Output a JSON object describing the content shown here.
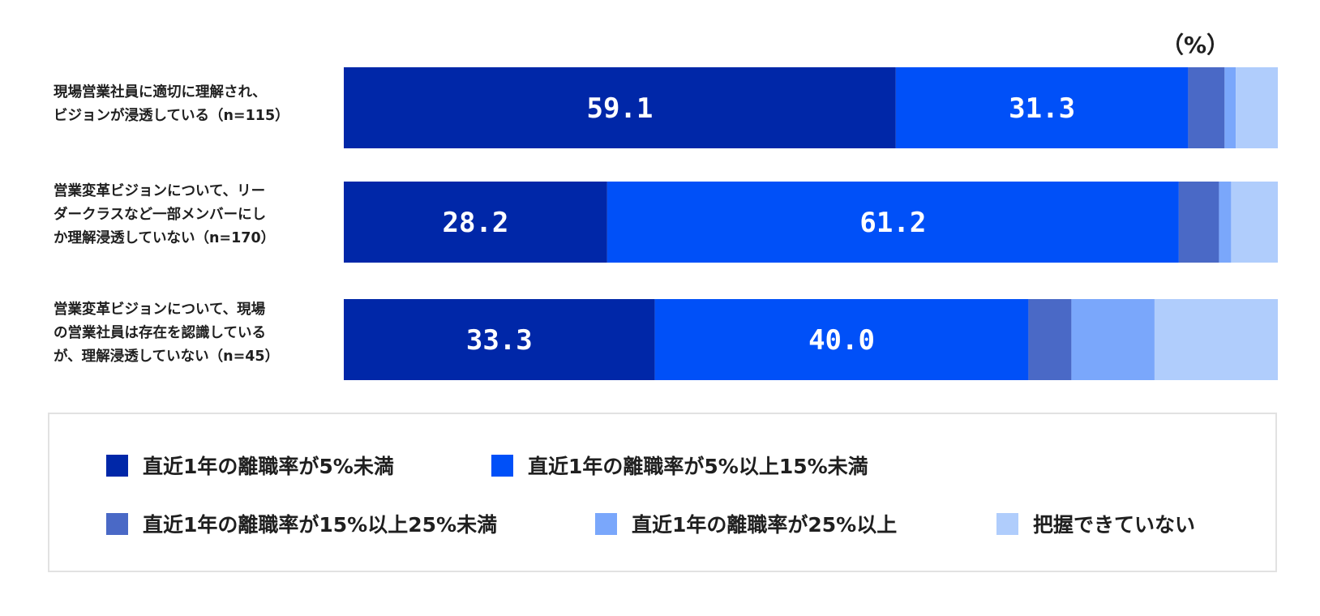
{
  "chart_data": {
    "type": "bar",
    "orientation": "horizontal",
    "stacked": true,
    "unit_label": "（%）",
    "xlim": [
      0,
      100
    ],
    "categories": [
      "現場営業社員に適切に理解され、\nビジョンが浸透している（n=115）",
      "営業変革ビジョンについて、リー\nダークラスなど一部メンバーにし\nか理解浸透していない（n=170）",
      "営業変革ビジョンについて、現場\nの営業社員は存在を認識している\nが、理解浸透していない（n=45）"
    ],
    "series": [
      {
        "name": "直近1年の離職率が5%未満",
        "color": "#0027a8",
        "values": [
          59.1,
          28.2,
          33.3
        ],
        "labels": [
          "59.1",
          "28.2",
          "33.3"
        ]
      },
      {
        "name": "直近1年の離職率が5%以上15%未満",
        "color": "#0050f8",
        "values": [
          31.3,
          61.2,
          40.0
        ],
        "labels": [
          "31.3",
          "61.2",
          "40.0"
        ]
      },
      {
        "name": "直近1年の離職率が15%以上25%未満",
        "color": "#4a69c6",
        "values": [
          3.9,
          4.3,
          4.6
        ],
        "labels": [
          "",
          "",
          ""
        ]
      },
      {
        "name": "直近1年の離職率が25%以上",
        "color": "#7aa7fb",
        "values": [
          1.2,
          1.3,
          8.9
        ],
        "labels": [
          "",
          "",
          ""
        ]
      },
      {
        "name": "把握できていない",
        "color": "#b0cdfc",
        "values": [
          4.5,
          5.0,
          13.2
        ],
        "labels": [
          "",
          "",
          ""
        ]
      }
    ],
    "legend_position": "bottom",
    "grid": false
  }
}
